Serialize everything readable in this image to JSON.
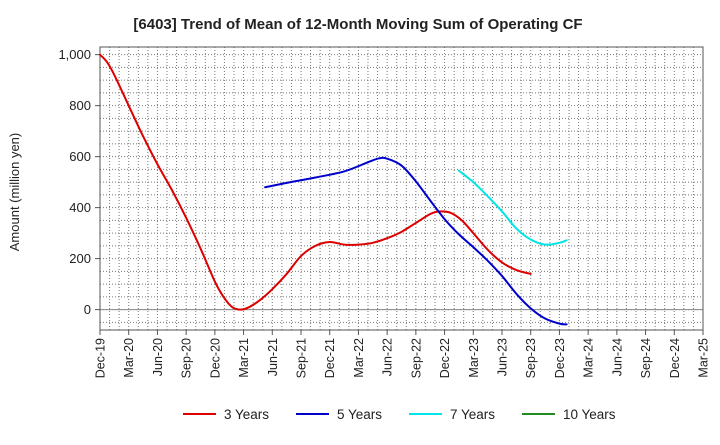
{
  "chart_data": {
    "type": "line",
    "title": "[6403]  Trend of Mean of 12-Month Moving Sum of Operating CF",
    "xlabel": "",
    "ylabel": "Amount (million yen)",
    "ylim": [
      -80,
      1030
    ],
    "y_ticks": [
      0,
      200,
      400,
      600,
      800,
      1000
    ],
    "y_tick_labels": [
      "0",
      "200",
      "400",
      "600",
      "800",
      "1,000"
    ],
    "x_tick_labels": [
      "Dec-19",
      "Mar-20",
      "Jun-20",
      "Sep-20",
      "Dec-20",
      "Mar-21",
      "Jun-21",
      "Sep-21",
      "Dec-21",
      "Mar-22",
      "Jun-22",
      "Sep-22",
      "Dec-22",
      "Mar-23",
      "Jun-23",
      "Sep-23",
      "Dec-23",
      "Mar-24",
      "Jun-24",
      "Sep-24",
      "Dec-24",
      "Mar-25"
    ],
    "grid": true,
    "legend_position": "bottom",
    "series": [
      {
        "name": "3 Years",
        "color": "#dd0000",
        "points": [
          [
            0,
            1000
          ],
          [
            0.25,
            970
          ],
          [
            0.5,
            920
          ],
          [
            1,
            800
          ],
          [
            1.5,
            680
          ],
          [
            2,
            570
          ],
          [
            2.5,
            470
          ],
          [
            3,
            360
          ],
          [
            3.5,
            240
          ],
          [
            4,
            110
          ],
          [
            4.3,
            50
          ],
          [
            4.6,
            10
          ],
          [
            4.9,
            0
          ],
          [
            5.2,
            10
          ],
          [
            5.6,
            40
          ],
          [
            6,
            80
          ],
          [
            6.5,
            140
          ],
          [
            7,
            210
          ],
          [
            7.5,
            250
          ],
          [
            8,
            265
          ],
          [
            8.5,
            255
          ],
          [
            9,
            255
          ],
          [
            9.5,
            262
          ],
          [
            10,
            280
          ],
          [
            10.5,
            305
          ],
          [
            11,
            340
          ],
          [
            11.5,
            375
          ],
          [
            11.8,
            385
          ],
          [
            12.2,
            380
          ],
          [
            12.6,
            350
          ],
          [
            13,
            300
          ],
          [
            13.5,
            235
          ],
          [
            14,
            185
          ],
          [
            14.5,
            155
          ],
          [
            15,
            140
          ]
        ]
      },
      {
        "name": "5 Years",
        "color": "#0000cc",
        "points": [
          [
            5.75,
            480
          ],
          [
            6.5,
            497
          ],
          [
            7.5,
            518
          ],
          [
            8.5,
            542
          ],
          [
            9.2,
            572
          ],
          [
            9.7,
            593
          ],
          [
            10,
            592
          ],
          [
            10.5,
            565
          ],
          [
            11,
            503
          ],
          [
            11.5,
            428
          ],
          [
            12,
            355
          ],
          [
            12.5,
            295
          ],
          [
            13,
            245
          ],
          [
            13.5,
            192
          ],
          [
            14,
            132
          ],
          [
            14.5,
            62
          ],
          [
            15,
            5
          ],
          [
            15.5,
            -35
          ],
          [
            16,
            -55
          ],
          [
            16.25,
            -58
          ]
        ]
      },
      {
        "name": "7 Years",
        "color": "#00e5e5",
        "points": [
          [
            12.5,
            545
          ],
          [
            13,
            500
          ],
          [
            13.5,
            445
          ],
          [
            14,
            385
          ],
          [
            14.5,
            318
          ],
          [
            15,
            275
          ],
          [
            15.5,
            255
          ],
          [
            16,
            262
          ],
          [
            16.25,
            272
          ]
        ]
      },
      {
        "name": "10 Years",
        "color": "#228b22",
        "points": []
      }
    ]
  }
}
